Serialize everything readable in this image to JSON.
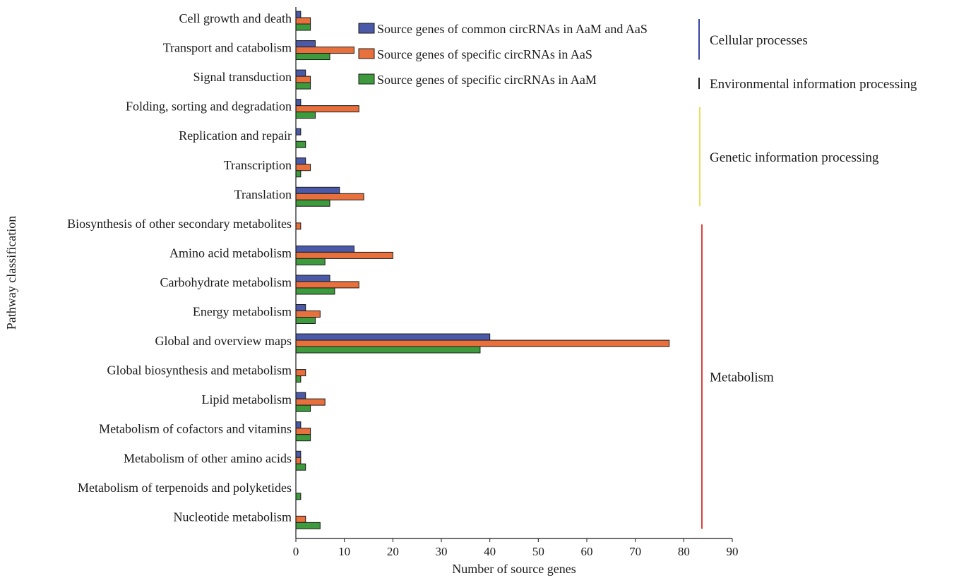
{
  "chart_data": {
    "type": "bar",
    "orientation": "horizontal",
    "xlabel": "Number of source genes",
    "ylabel": "Pathway classification",
    "xlim": [
      0,
      90
    ],
    "xticks": [
      0,
      10,
      20,
      30,
      40,
      50,
      60,
      70,
      80,
      90
    ],
    "grid": false,
    "legend_position": "top-right",
    "categories": [
      "Cell growth and death",
      "Transport and catabolism",
      "Signal transduction",
      "Folding, sorting and degradation",
      "Replication and repair",
      "Transcription",
      "Translation",
      "Biosynthesis of other secondary metabolites",
      "Amino acid metabolism",
      "Carbohydrate metabolism",
      "Energy metabolism",
      "Global and overview maps",
      "Global biosynthesis and metabolism",
      "Lipid metabolism",
      "Metabolism of cofactors and vitamins",
      "Metabolism of other amino acids",
      "Metabolism of terpenoids and polyketides",
      "Nucleotide metabolism"
    ],
    "series": [
      {
        "name": "Source genes of common circRNAs in AaM and AaS",
        "color": "#4a5aa8",
        "values": [
          1,
          4,
          2,
          1,
          1,
          2,
          9,
          0,
          12,
          7,
          2,
          40,
          0,
          2,
          1,
          1,
          0,
          0
        ]
      },
      {
        "name": "Source genes of specific circRNAs in AaS",
        "color": "#e8703c",
        "values": [
          3,
          12,
          3,
          13,
          0,
          3,
          14,
          1,
          20,
          13,
          5,
          77,
          2,
          6,
          3,
          1,
          0,
          2
        ]
      },
      {
        "name": "Source genes of specific circRNAs in AaM",
        "color": "#3d9a3d",
        "values": [
          3,
          7,
          3,
          4,
          2,
          1,
          7,
          0,
          6,
          8,
          4,
          38,
          1,
          3,
          3,
          2,
          1,
          5
        ]
      }
    ],
    "groups": [
      {
        "label": "Cellular processes",
        "color": "#3a46a0",
        "first": 0,
        "last": 1
      },
      {
        "label": "Environmental information processing",
        "color": "#222222",
        "first": 2,
        "last": 2
      },
      {
        "label": "Genetic information processing",
        "color": "#e8de58",
        "first": 3,
        "last": 6
      },
      {
        "label": "Metabolism",
        "color": "#e0403a",
        "first": 7,
        "last": 17
      }
    ]
  }
}
